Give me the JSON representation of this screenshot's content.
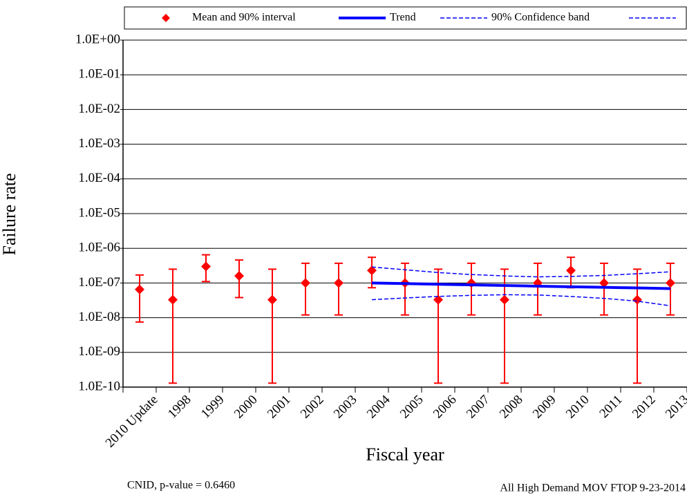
{
  "chart_data": {
    "type": "errorbar-line",
    "x_label": "Fiscal year",
    "y_label": "Failure rate",
    "annotations": [
      "CNID, p-value = 0.6460",
      "All High Demand MOV FTOP 9-23-2014"
    ],
    "log_y": true,
    "grid": true,
    "ylim": [
      1e-10,
      1
    ],
    "yticks": [
      {
        "value": 1,
        "label": "1.0E+00"
      },
      {
        "value": 0.1,
        "label": "1.0E-01"
      },
      {
        "value": 0.01,
        "label": "1.0E-02"
      },
      {
        "value": 0.001,
        "label": "1.0E-03"
      },
      {
        "value": 0.0001,
        "label": "1.0E-04"
      },
      {
        "value": 1e-05,
        "label": "1.0E-05"
      },
      {
        "value": 1e-06,
        "label": "1.0E-06"
      },
      {
        "value": 1e-07,
        "label": "1.0E-07"
      },
      {
        "value": 1e-08,
        "label": "1.0E-08"
      },
      {
        "value": 1e-09,
        "label": "1.0E-09"
      },
      {
        "value": 1e-10,
        "label": "1.0E-10"
      }
    ],
    "categories": [
      "2010 Update",
      "1998",
      "1999",
      "2000",
      "2001",
      "2002",
      "2003",
      "2004",
      "2005",
      "2006",
      "2007",
      "2008",
      "2009",
      "2010",
      "2011",
      "2012",
      "2013"
    ],
    "series": [
      {
        "name": "Mean and 90% interval",
        "color": "#ff0000",
        "kind": "errorbar",
        "values": [
          6.5e-08,
          3.3e-08,
          3e-07,
          1.6e-07,
          3.3e-08,
          1e-07,
          1e-07,
          2.3e-07,
          1e-07,
          3.3e-08,
          1e-07,
          3.3e-08,
          1e-07,
          2.3e-07,
          1e-07,
          3.3e-08,
          1e-07
        ],
        "lower": [
          7.5e-09,
          1.3e-10,
          1.1e-07,
          3.8e-08,
          1.3e-10,
          1.2e-08,
          1.2e-08,
          7.3e-08,
          1.2e-08,
          1.3e-10,
          1.2e-08,
          1.3e-10,
          1.2e-08,
          7.3e-08,
          1.2e-08,
          1.3e-10,
          1.2e-08
        ],
        "upper": [
          1.7e-07,
          2.5e-07,
          6.5e-07,
          4.6e-07,
          2.5e-07,
          3.7e-07,
          3.7e-07,
          5.5e-07,
          3.7e-07,
          2.5e-07,
          3.7e-07,
          2.5e-07,
          3.7e-07,
          5.5e-07,
          3.7e-07,
          2.5e-07,
          3.7e-07
        ]
      },
      {
        "name": "Trend",
        "color": "#0000ff",
        "kind": "trend",
        "values": [
          null,
          null,
          null,
          null,
          null,
          null,
          null,
          1e-07,
          9.6e-08,
          9.2e-08,
          8.8e-08,
          8.5e-08,
          8.1e-08,
          7.8e-08,
          7.5e-08,
          7.2e-08,
          6.9e-08
        ]
      },
      {
        "name": "90% Confidence band",
        "color": "#0000ff",
        "kind": "band",
        "values": [
          null,
          null,
          null,
          null,
          null,
          null,
          null,
          2.9e-07,
          2.4e-07,
          2e-07,
          1.75e-07,
          1.6e-07,
          1.5e-07,
          1.55e-07,
          1.65e-07,
          1.85e-07,
          2.1e-07
        ]
      },
      {
        "color": "#0000ff",
        "kind": "band",
        "values": [
          null,
          null,
          null,
          null,
          null,
          null,
          null,
          3.3e-08,
          3.7e-08,
          4.1e-08,
          4.4e-08,
          4.6e-08,
          4.5e-08,
          4.1e-08,
          3.6e-08,
          3e-08,
          2.2e-08
        ]
      }
    ]
  }
}
